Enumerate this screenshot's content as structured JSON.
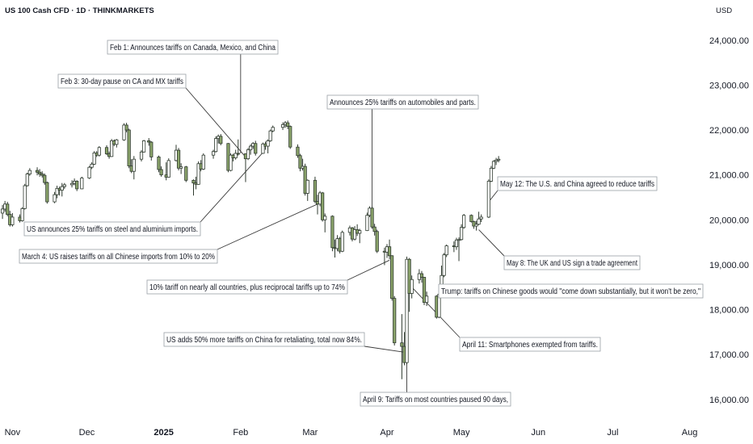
{
  "header": {
    "title": "US 100 Cash CFD · 1D · THINKMARKETS"
  },
  "price_axis": {
    "currency": "USD",
    "labels": [
      "24,000.00",
      "23,000.00",
      "22,000.00",
      "21,000.00",
      "20,000.00",
      "19,000.00",
      "18,000.00",
      "17,000.00",
      "16,000.00"
    ]
  },
  "time_axis": {
    "labels": [
      "Nov",
      "Dec",
      "2025",
      "Feb",
      "Mar",
      "Apr",
      "May",
      "Jun",
      "Jul",
      "Aug"
    ]
  },
  "colors": {
    "up": "#ffffff",
    "down": "#8aa36a",
    "outline": "#2f3a2f",
    "text": "#131722"
  },
  "chart_data": {
    "type": "candlestick",
    "instrument": "US 100 Cash CFD",
    "interval": "1D",
    "y_unit": "USD",
    "ylim": [
      15600,
      24500
    ],
    "xlim": [
      "2024-10-27",
      "2025-08-07"
    ],
    "x_ticks": [
      "2024-11-01",
      "2024-12-01",
      "2025-01-01",
      "2025-02-01",
      "2025-03-01",
      "2025-04-01",
      "2025-05-01",
      "2025-06-01",
      "2025-07-01",
      "2025-08-01"
    ],
    "candles": [
      {
        "d": "2024-10-28",
        "o": 20150,
        "h": 20330,
        "l": 20020,
        "c": 20240
      },
      {
        "d": "2024-10-29",
        "o": 20240,
        "h": 20420,
        "l": 20180,
        "c": 20350
      },
      {
        "d": "2024-10-30",
        "o": 20350,
        "h": 20400,
        "l": 20080,
        "c": 20120
      },
      {
        "d": "2024-10-31",
        "o": 20120,
        "h": 20200,
        "l": 19850,
        "c": 19890
      },
      {
        "d": "2024-11-01",
        "o": 19890,
        "h": 20150,
        "l": 19850,
        "c": 20060
      },
      {
        "d": "2024-11-04",
        "o": 20060,
        "h": 20120,
        "l": 19940,
        "c": 19980
      },
      {
        "d": "2024-11-05",
        "o": 19980,
        "h": 20280,
        "l": 19960,
        "c": 20250
      },
      {
        "d": "2024-11-06",
        "o": 20250,
        "h": 20800,
        "l": 20230,
        "c": 20760
      },
      {
        "d": "2024-11-07",
        "o": 20760,
        "h": 21050,
        "l": 20740,
        "c": 21020
      },
      {
        "d": "2024-11-08",
        "o": 21020,
        "h": 21150,
        "l": 20980,
        "c": 21100
      },
      {
        "d": "2024-11-11",
        "o": 21100,
        "h": 21170,
        "l": 20990,
        "c": 21060
      },
      {
        "d": "2024-11-12",
        "o": 21060,
        "h": 21130,
        "l": 20960,
        "c": 21020
      },
      {
        "d": "2024-11-13",
        "o": 21020,
        "h": 21080,
        "l": 20940,
        "c": 20990
      },
      {
        "d": "2024-11-14",
        "o": 20990,
        "h": 21030,
        "l": 20780,
        "c": 20830
      },
      {
        "d": "2024-11-15",
        "o": 20830,
        "h": 20850,
        "l": 20360,
        "c": 20400
      },
      {
        "d": "2024-11-18",
        "o": 20400,
        "h": 20620,
        "l": 20370,
        "c": 20560
      },
      {
        "d": "2024-11-19",
        "o": 20560,
        "h": 20760,
        "l": 20480,
        "c": 20700
      },
      {
        "d": "2024-11-20",
        "o": 20700,
        "h": 20740,
        "l": 20540,
        "c": 20660
      },
      {
        "d": "2024-11-21",
        "o": 20660,
        "h": 20820,
        "l": 20520,
        "c": 20740
      },
      {
        "d": "2024-11-22",
        "o": 20740,
        "h": 20820,
        "l": 20690,
        "c": 20780
      },
      {
        "d": "2024-11-25",
        "o": 20780,
        "h": 20880,
        "l": 20720,
        "c": 20810
      },
      {
        "d": "2024-11-26",
        "o": 20810,
        "h": 20920,
        "l": 20770,
        "c": 20860
      },
      {
        "d": "2024-11-27",
        "o": 20860,
        "h": 20880,
        "l": 20640,
        "c": 20690
      },
      {
        "d": "2024-11-29",
        "o": 20690,
        "h": 20960,
        "l": 20680,
        "c": 20930
      },
      {
        "d": "2024-12-02",
        "o": 20930,
        "h": 21200,
        "l": 20910,
        "c": 21170
      },
      {
        "d": "2024-12-03",
        "o": 21170,
        "h": 21280,
        "l": 21130,
        "c": 21240
      },
      {
        "d": "2024-12-04",
        "o": 21240,
        "h": 21530,
        "l": 21220,
        "c": 21490
      },
      {
        "d": "2024-12-05",
        "o": 21490,
        "h": 21530,
        "l": 21400,
        "c": 21440
      },
      {
        "d": "2024-12-06",
        "o": 21440,
        "h": 21640,
        "l": 21410,
        "c": 21610
      },
      {
        "d": "2024-12-09",
        "o": 21610,
        "h": 21660,
        "l": 21440,
        "c": 21470
      },
      {
        "d": "2024-12-10",
        "o": 21470,
        "h": 21520,
        "l": 21360,
        "c": 21410
      },
      {
        "d": "2024-12-11",
        "o": 21410,
        "h": 21800,
        "l": 21400,
        "c": 21760
      },
      {
        "d": "2024-12-12",
        "o": 21760,
        "h": 21790,
        "l": 21640,
        "c": 21680
      },
      {
        "d": "2024-12-13",
        "o": 21680,
        "h": 21800,
        "l": 21610,
        "c": 21780
      },
      {
        "d": "2024-12-16",
        "o": 21780,
        "h": 22150,
        "l": 21760,
        "c": 22110
      },
      {
        "d": "2024-12-17",
        "o": 22110,
        "h": 22160,
        "l": 21950,
        "c": 22000
      },
      {
        "d": "2024-12-18",
        "o": 22000,
        "h": 22030,
        "l": 21150,
        "c": 21200
      },
      {
        "d": "2024-12-19",
        "o": 21200,
        "h": 21350,
        "l": 21040,
        "c": 21080
      },
      {
        "d": "2024-12-20",
        "o": 21080,
        "h": 21420,
        "l": 20900,
        "c": 21350
      },
      {
        "d": "2024-12-23",
        "o": 21350,
        "h": 21550,
        "l": 21300,
        "c": 21510
      },
      {
        "d": "2024-12-24",
        "o": 21510,
        "h": 21780,
        "l": 21500,
        "c": 21760
      },
      {
        "d": "2024-12-26",
        "o": 21760,
        "h": 21820,
        "l": 21650,
        "c": 21730
      },
      {
        "d": "2024-12-27",
        "o": 21730,
        "h": 21750,
        "l": 21320,
        "c": 21400
      },
      {
        "d": "2024-12-30",
        "o": 21400,
        "h": 21430,
        "l": 21060,
        "c": 21120
      },
      {
        "d": "2024-12-31",
        "o": 21120,
        "h": 21190,
        "l": 20960,
        "c": 21000
      },
      {
        "d": "2025-01-02",
        "o": 21000,
        "h": 21280,
        "l": 20880,
        "c": 20950
      },
      {
        "d": "2025-01-03",
        "o": 20950,
        "h": 21370,
        "l": 20940,
        "c": 21320
      },
      {
        "d": "2025-01-06",
        "o": 21320,
        "h": 21670,
        "l": 21300,
        "c": 21550
      },
      {
        "d": "2025-01-07",
        "o": 21550,
        "h": 21600,
        "l": 21100,
        "c": 21150
      },
      {
        "d": "2025-01-08",
        "o": 21150,
        "h": 21260,
        "l": 21020,
        "c": 21180
      },
      {
        "d": "2025-01-10",
        "o": 21180,
        "h": 21200,
        "l": 20840,
        "c": 20880
      },
      {
        "d": "2025-01-13",
        "o": 20880,
        "h": 20900,
        "l": 20540,
        "c": 20820
      },
      {
        "d": "2025-01-14",
        "o": 20820,
        "h": 20960,
        "l": 20680,
        "c": 20790
      },
      {
        "d": "2025-01-15",
        "o": 20790,
        "h": 21300,
        "l": 20780,
        "c": 21250
      },
      {
        "d": "2025-01-16",
        "o": 21250,
        "h": 21330,
        "l": 21080,
        "c": 21130
      },
      {
        "d": "2025-01-17",
        "o": 21130,
        "h": 21480,
        "l": 21110,
        "c": 21440
      },
      {
        "d": "2025-01-21",
        "o": 21440,
        "h": 21560,
        "l": 21360,
        "c": 21520
      },
      {
        "d": "2025-01-22",
        "o": 21520,
        "h": 21860,
        "l": 21500,
        "c": 21810
      },
      {
        "d": "2025-01-23",
        "o": 21810,
        "h": 21900,
        "l": 21700,
        "c": 21860
      },
      {
        "d": "2025-01-24",
        "o": 21860,
        "h": 21910,
        "l": 21660,
        "c": 21700
      },
      {
        "d": "2025-01-27",
        "o": 21700,
        "h": 21710,
        "l": 21060,
        "c": 21100
      },
      {
        "d": "2025-01-28",
        "o": 21100,
        "h": 21480,
        "l": 21080,
        "c": 21440
      },
      {
        "d": "2025-01-29",
        "o": 21440,
        "h": 21470,
        "l": 21300,
        "c": 21380
      },
      {
        "d": "2025-01-30",
        "o": 21380,
        "h": 21560,
        "l": 21340,
        "c": 21480
      },
      {
        "d": "2025-01-31",
        "o": 21480,
        "h": 21790,
        "l": 21430,
        "c": 21470
      },
      {
        "d": "2025-02-03",
        "o": 21470,
        "h": 21480,
        "l": 20840,
        "c": 21360
      },
      {
        "d": "2025-02-04",
        "o": 21360,
        "h": 21600,
        "l": 21330,
        "c": 21560
      },
      {
        "d": "2025-02-05",
        "o": 21560,
        "h": 21680,
        "l": 21450,
        "c": 21640
      },
      {
        "d": "2025-02-06",
        "o": 21640,
        "h": 21730,
        "l": 21580,
        "c": 21700
      },
      {
        "d": "2025-02-07",
        "o": 21700,
        "h": 21760,
        "l": 21430,
        "c": 21480
      },
      {
        "d": "2025-02-10",
        "o": 21480,
        "h": 21720,
        "l": 21470,
        "c": 21690
      },
      {
        "d": "2025-02-11",
        "o": 21690,
        "h": 21740,
        "l": 21560,
        "c": 21640
      },
      {
        "d": "2025-02-12",
        "o": 21640,
        "h": 21790,
        "l": 21480,
        "c": 21760
      },
      {
        "d": "2025-02-13",
        "o": 21760,
        "h": 22010,
        "l": 21740,
        "c": 21980
      },
      {
        "d": "2025-02-14",
        "o": 21980,
        "h": 22100,
        "l": 21950,
        "c": 22060
      },
      {
        "d": "2025-02-18",
        "o": 22060,
        "h": 22170,
        "l": 22000,
        "c": 22120
      },
      {
        "d": "2025-02-19",
        "o": 22120,
        "h": 22200,
        "l": 22050,
        "c": 22160
      },
      {
        "d": "2025-02-20",
        "o": 22160,
        "h": 22210,
        "l": 22020,
        "c": 22080
      },
      {
        "d": "2025-02-21",
        "o": 22080,
        "h": 22100,
        "l": 21580,
        "c": 21620
      },
      {
        "d": "2025-02-24",
        "o": 21620,
        "h": 21680,
        "l": 21380,
        "c": 21430
      },
      {
        "d": "2025-02-25",
        "o": 21430,
        "h": 21470,
        "l": 21080,
        "c": 21150
      },
      {
        "d": "2025-02-26",
        "o": 21150,
        "h": 21360,
        "l": 21100,
        "c": 21190
      },
      {
        "d": "2025-02-27",
        "o": 21190,
        "h": 21250,
        "l": 20540,
        "c": 20590
      },
      {
        "d": "2025-02-28",
        "o": 20590,
        "h": 20900,
        "l": 20420,
        "c": 20880
      },
      {
        "d": "2025-03-03",
        "o": 20880,
        "h": 20960,
        "l": 20370,
        "c": 20410
      },
      {
        "d": "2025-03-04",
        "o": 20410,
        "h": 20560,
        "l": 20120,
        "c": 20350
      },
      {
        "d": "2025-03-05",
        "o": 20350,
        "h": 20640,
        "l": 20300,
        "c": 20600
      },
      {
        "d": "2025-03-06",
        "o": 20600,
        "h": 20620,
        "l": 19960,
        "c": 20000
      },
      {
        "d": "2025-03-07",
        "o": 20000,
        "h": 20140,
        "l": 19720,
        "c": 20080
      },
      {
        "d": "2025-03-10",
        "o": 20080,
        "h": 20100,
        "l": 19300,
        "c": 19380
      },
      {
        "d": "2025-03-11",
        "o": 19380,
        "h": 19560,
        "l": 19160,
        "c": 19360
      },
      {
        "d": "2025-03-12",
        "o": 19360,
        "h": 19660,
        "l": 19300,
        "c": 19580
      },
      {
        "d": "2025-03-13",
        "o": 19580,
        "h": 19620,
        "l": 19250,
        "c": 19300
      },
      {
        "d": "2025-03-14",
        "o": 19300,
        "h": 19760,
        "l": 19280,
        "c": 19720
      },
      {
        "d": "2025-03-17",
        "o": 19720,
        "h": 19870,
        "l": 19650,
        "c": 19820
      },
      {
        "d": "2025-03-18",
        "o": 19820,
        "h": 19840,
        "l": 19520,
        "c": 19570
      },
      {
        "d": "2025-03-19",
        "o": 19570,
        "h": 19860,
        "l": 19540,
        "c": 19780
      },
      {
        "d": "2025-03-20",
        "o": 19780,
        "h": 19900,
        "l": 19640,
        "c": 19700
      },
      {
        "d": "2025-03-21",
        "o": 19700,
        "h": 19800,
        "l": 19480,
        "c": 19760
      },
      {
        "d": "2025-03-24",
        "o": 19760,
        "h": 20160,
        "l": 19750,
        "c": 20100
      },
      {
        "d": "2025-03-25",
        "o": 20100,
        "h": 20300,
        "l": 20060,
        "c": 20260
      },
      {
        "d": "2025-03-26",
        "o": 20260,
        "h": 20300,
        "l": 19800,
        "c": 19840
      },
      {
        "d": "2025-03-27",
        "o": 19840,
        "h": 19910,
        "l": 19650,
        "c": 19740
      },
      {
        "d": "2025-03-28",
        "o": 19740,
        "h": 19780,
        "l": 19260,
        "c": 19300
      },
      {
        "d": "2025-03-31",
        "o": 19300,
        "h": 19380,
        "l": 18990,
        "c": 19280
      },
      {
        "d": "2025-04-01",
        "o": 19280,
        "h": 19460,
        "l": 19150,
        "c": 19400
      },
      {
        "d": "2025-04-02",
        "o": 19400,
        "h": 19560,
        "l": 19120,
        "c": 19200
      },
      {
        "d": "2025-04-03",
        "o": 19200,
        "h": 19210,
        "l": 18200,
        "c": 18250
      },
      {
        "d": "2025-04-04",
        "o": 18250,
        "h": 18300,
        "l": 17200,
        "c": 17260
      },
      {
        "d": "2025-04-07",
        "o": 17260,
        "h": 17900,
        "l": 16450,
        "c": 17180
      },
      {
        "d": "2025-04-08",
        "o": 17180,
        "h": 17500,
        "l": 16760,
        "c": 16820
      },
      {
        "d": "2025-04-09",
        "o": 16820,
        "h": 19180,
        "l": 16780,
        "c": 19120
      },
      {
        "d": "2025-04-10",
        "o": 19120,
        "h": 19150,
        "l": 17950,
        "c": 18360
      },
      {
        "d": "2025-04-11",
        "o": 18360,
        "h": 18760,
        "l": 18250,
        "c": 18670
      },
      {
        "d": "2025-04-14",
        "o": 18670,
        "h": 18900,
        "l": 18580,
        "c": 18800
      },
      {
        "d": "2025-04-15",
        "o": 18800,
        "h": 18860,
        "l": 18600,
        "c": 18720
      },
      {
        "d": "2025-04-16",
        "o": 18720,
        "h": 18730,
        "l": 18100,
        "c": 18160
      },
      {
        "d": "2025-04-17",
        "o": 18160,
        "h": 18400,
        "l": 18080,
        "c": 18300
      },
      {
        "d": "2025-04-21",
        "o": 18300,
        "h": 18320,
        "l": 17800,
        "c": 17830
      },
      {
        "d": "2025-04-22",
        "o": 17830,
        "h": 18380,
        "l": 17810,
        "c": 18340
      },
      {
        "d": "2025-04-23",
        "o": 18340,
        "h": 18980,
        "l": 18320,
        "c": 18760
      },
      {
        "d": "2025-04-24",
        "o": 18760,
        "h": 19260,
        "l": 18720,
        "c": 19220
      },
      {
        "d": "2025-04-25",
        "o": 19220,
        "h": 19450,
        "l": 19170,
        "c": 19420
      },
      {
        "d": "2025-04-28",
        "o": 19420,
        "h": 19520,
        "l": 19280,
        "c": 19400
      },
      {
        "d": "2025-04-29",
        "o": 19400,
        "h": 19600,
        "l": 19330,
        "c": 19550
      },
      {
        "d": "2025-04-30",
        "o": 19550,
        "h": 19610,
        "l": 19080,
        "c": 19560
      },
      {
        "d": "2025-05-01",
        "o": 19560,
        "h": 19900,
        "l": 19540,
        "c": 19830
      },
      {
        "d": "2025-05-02",
        "o": 19830,
        "h": 20130,
        "l": 19800,
        "c": 20100
      },
      {
        "d": "2025-05-05",
        "o": 20100,
        "h": 20120,
        "l": 19940,
        "c": 19960
      },
      {
        "d": "2025-05-06",
        "o": 19960,
        "h": 19980,
        "l": 19800,
        "c": 19860
      },
      {
        "d": "2025-05-07",
        "o": 19860,
        "h": 19980,
        "l": 19760,
        "c": 19900
      },
      {
        "d": "2025-05-08",
        "o": 19900,
        "h": 20180,
        "l": 19880,
        "c": 20020
      },
      {
        "d": "2025-05-09",
        "o": 20020,
        "h": 20120,
        "l": 19950,
        "c": 20060
      },
      {
        "d": "2025-05-12",
        "o": 20060,
        "h": 20900,
        "l": 20040,
        "c": 20860
      },
      {
        "d": "2025-05-13",
        "o": 20860,
        "h": 21200,
        "l": 20840,
        "c": 21150
      },
      {
        "d": "2025-05-14",
        "o": 21150,
        "h": 21330,
        "l": 21130,
        "c": 21300
      },
      {
        "d": "2025-05-15",
        "o": 21300,
        "h": 21380,
        "l": 21220,
        "c": 21330
      },
      {
        "d": "2025-05-16",
        "o": 21330,
        "h": 21420,
        "l": 21280,
        "c": 21350
      }
    ],
    "annotations": [
      {
        "text": "Feb 1: Announces tariffs on Canada, Mexico, and China",
        "d": "2025-02-01",
        "price": 21480
      },
      {
        "text": "Feb 3: 30-day pause on CA and MX tariffs",
        "d": "2025-02-03",
        "price": 21400
      },
      {
        "text": "Announces 25% tariffs on automobiles and parts.",
        "d": "2025-03-26",
        "price": 20260
      },
      {
        "text": "May 12: The U.S. and China agreed to reduce tariffs",
        "d": "2025-05-12",
        "price": 20400
      },
      {
        "text": "US announces 25% tariffs on steel and aluminium imports.",
        "d": "2025-02-10",
        "price": 21500
      },
      {
        "text": "May 8: The UK and US sign a trade agreement",
        "d": "2025-05-08",
        "price": 19780
      },
      {
        "text": "March 4: US raises tariffs on all Chinese imports from 10% to 20%",
        "d": "2025-03-04",
        "price": 20350
      },
      {
        "text": "10% tariff on nearly all countries, plus reciprocal tariffs up to 74%",
        "d": "2025-04-02",
        "price": 19100
      },
      {
        "text": "Trump: tariffs on Chinese goods would \"come down substantially, but it won't be zero,\"",
        "d": "2025-04-22",
        "price": 18200
      },
      {
        "text": "US adds 50% more tariffs on China for retaliating, total now 84%.",
        "d": "2025-04-08",
        "price": 17050
      },
      {
        "text": "April 11: Smartphones exempted from tariffs.",
        "d": "2025-04-11",
        "price": 18500
      },
      {
        "text": "April 9: Tariffs on most countries paused 90 days,",
        "d": "2025-04-09",
        "price": 17300
      }
    ]
  }
}
